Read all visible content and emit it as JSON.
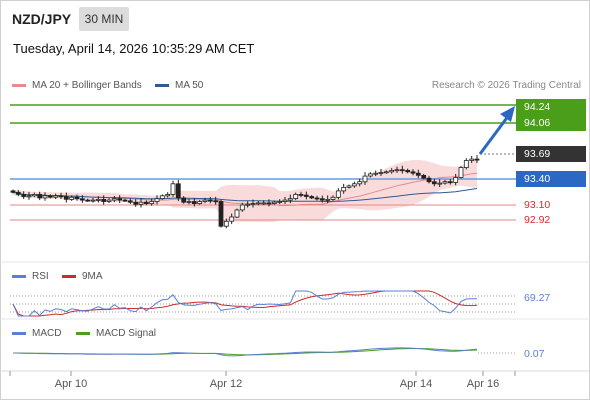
{
  "header": {
    "symbol": "NZD/JPY",
    "timeframe": "30 MIN",
    "datetime": "Tuesday, April 14, 2026 10:35:29 AM CET"
  },
  "legend": {
    "ma20": "MA 20 + Bollinger Bands",
    "ma50": "MA 50",
    "source": "Research © 2026 Trading Central",
    "rsi": "RSI",
    "rsi_ma": "9MA",
    "macd": "MACD",
    "macd_signal": "MACD Signal"
  },
  "colors": {
    "resistance": "#4a9e1a",
    "pivot": "#2a68c4",
    "support": "#d62b2b",
    "current": "#333333",
    "bollinger": "#f8cfcf",
    "ma20": "#e88a8a",
    "ma50": "#2d5b94",
    "rsi": "#5b7fd6",
    "rsi_ma": "#cc2b2b",
    "macd": "#5b7fd6",
    "macd_signal": "#4a9e1a"
  },
  "chart_data": [
    {
      "type": "candlestick",
      "x_ticks": [
        "Apr 10",
        "Apr 12",
        "Apr 14",
        "Apr 16"
      ],
      "ylim": [
        92.3,
        94.65
      ],
      "levels": {
        "resistance": [
          94.24,
          94.06
        ],
        "pivot": 93.4,
        "support": [
          93.1,
          92.92
        ],
        "current": 93.69
      },
      "closes": [
        93.23,
        93.2,
        93.17,
        93.18,
        93.2,
        93.15,
        93.18,
        93.16,
        93.18,
        93.17,
        93.13,
        93.16,
        93.14,
        93.12,
        93.11,
        93.12,
        93.13,
        93.1,
        93.12,
        93.14,
        93.12,
        93.11,
        93.09,
        93.06,
        93.09,
        93.07,
        93.1,
        93.14,
        93.18,
        93.2,
        93.35,
        93.15,
        93.09,
        93.1,
        93.07,
        93.1,
        93.12,
        93.11,
        93.1,
        92.75,
        92.82,
        92.88,
        92.98,
        93.05,
        93.06,
        93.07,
        93.08,
        93.08,
        93.07,
        93.09,
        93.1,
        93.12,
        93.14,
        93.2,
        93.19,
        93.17,
        93.15,
        93.14,
        93.12,
        93.13,
        93.16,
        93.25,
        93.3,
        93.32,
        93.35,
        93.38,
        93.46,
        93.49,
        93.5,
        93.51,
        93.52,
        93.54,
        93.55,
        93.54,
        93.52,
        93.5,
        93.47,
        93.43,
        93.38,
        93.35,
        93.36,
        93.38,
        93.37,
        93.44,
        93.58,
        93.68,
        93.7,
        93.69
      ]
    },
    {
      "type": "line",
      "name": "RSI",
      "series": [
        {
          "name": "RSI",
          "last": 69.27
        }
      ],
      "levels": [
        70,
        50,
        30
      ]
    },
    {
      "type": "line",
      "name": "MACD",
      "series": [
        {
          "name": "MACD",
          "last": 0.07
        }
      ],
      "levels": [
        0
      ]
    }
  ],
  "price_labels": {
    "r1": "94.24",
    "r2": "94.06",
    "current": "93.69",
    "pivot": "93.40",
    "s1": "93.10",
    "s2": "92.92",
    "rsi": "69.27",
    "macd": "0.07"
  }
}
